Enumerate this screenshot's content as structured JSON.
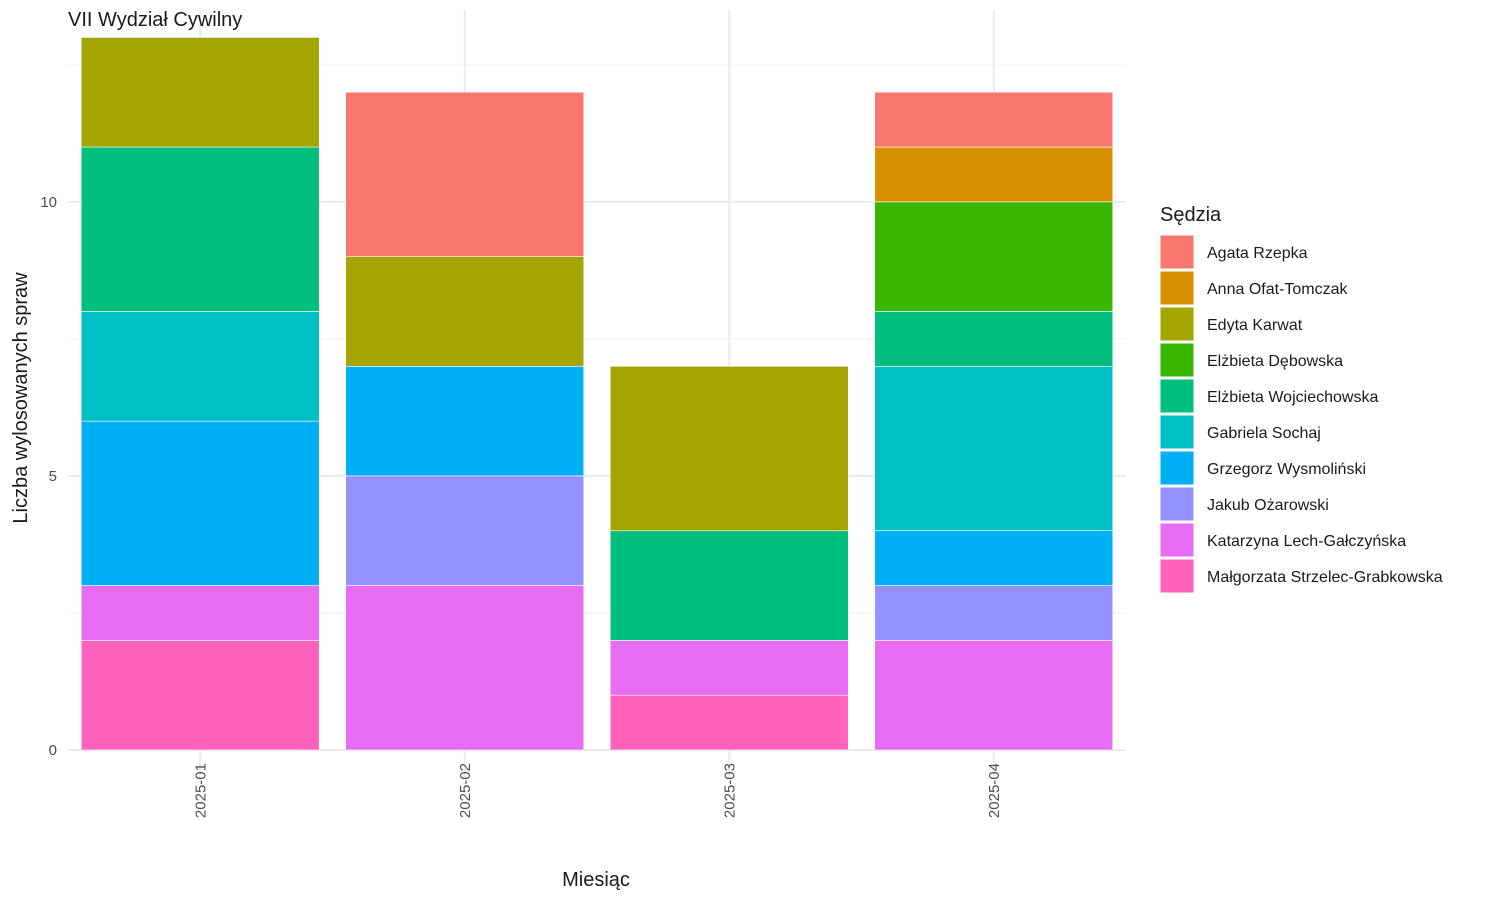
{
  "chart_data": {
    "type": "bar",
    "stacked": true,
    "title": "VII Wydział Cywilny",
    "xlabel": "Miesiąc",
    "ylabel": "Liczba wylosowanych spraw",
    "categories": [
      "2025-01",
      "2025-02",
      "2025-03",
      "2025-04"
    ],
    "ylim": [
      0,
      13.5
    ],
    "yticks": [
      0,
      5,
      10
    ],
    "grid": true,
    "legend": {
      "title": "Sędzia",
      "position": "right"
    },
    "series": [
      {
        "name": "Agata Rzepka",
        "color": "#F8766D",
        "values": [
          0,
          3,
          0,
          1
        ]
      },
      {
        "name": "Anna Ofat-Tomczak",
        "color": "#D89000",
        "values": [
          0,
          0,
          0,
          1
        ]
      },
      {
        "name": "Edyta Karwat",
        "color": "#A3A500",
        "values": [
          2,
          2,
          3,
          0
        ]
      },
      {
        "name": "Elżbieta Dębowska",
        "color": "#39B600",
        "values": [
          0,
          0,
          0,
          2
        ]
      },
      {
        "name": "Elżbieta Wojciechowska",
        "color": "#00BF7D",
        "values": [
          3,
          0,
          2,
          1
        ]
      },
      {
        "name": "Gabriela Sochaj",
        "color": "#00BFC4",
        "values": [
          2,
          0,
          0,
          3
        ]
      },
      {
        "name": "Grzegorz Wysmoliński",
        "color": "#00B0F6",
        "values": [
          3,
          2,
          0,
          1
        ]
      },
      {
        "name": "Jakub Ożarowski",
        "color": "#9590FF",
        "values": [
          0,
          2,
          0,
          1
        ]
      },
      {
        "name": "Katarzyna Lech-Gałczyńska",
        "color": "#E76BF3",
        "values": [
          1,
          3,
          1,
          2
        ]
      },
      {
        "name": "Małgorzata Strzelec-Grabkowska",
        "color": "#FF62BC",
        "values": [
          2,
          0,
          1,
          0
        ]
      }
    ]
  }
}
